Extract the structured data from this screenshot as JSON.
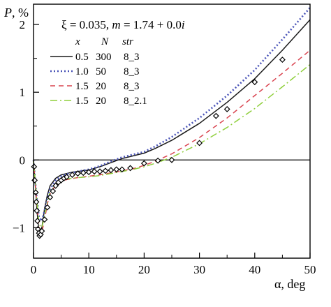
{
  "chart_data": {
    "type": "line",
    "title": "ξ = 0.035, m = 1.74 + 0.0i",
    "title_parts": {
      "xi": "ξ = 0.035, ",
      "m_var": "m",
      "m_eq": " = 1.74 + 0.0",
      "m_imag": "i"
    },
    "xlabel": "α, deg",
    "ylabel": "P, %",
    "ylabel_parts": {
      "var": "P",
      "unit": ", %"
    },
    "xlim": [
      0,
      50
    ],
    "ylim": [
      -1.45,
      2.3
    ],
    "xticks": [
      0,
      10,
      20,
      30,
      40,
      50
    ],
    "xtick_labels": [
      "0",
      "10",
      "20",
      "30",
      "40",
      "50"
    ],
    "yticks": [
      -1,
      0,
      1,
      2
    ],
    "ytick_labels": [
      "−1",
      "0",
      "1",
      "2"
    ],
    "reference_line_y": 0,
    "legend": {
      "placement": "top-left",
      "headers": [
        "x",
        "N",
        "str"
      ],
      "entries": [
        {
          "x": "0.5",
          "N": "300",
          "str": "8_3"
        },
        {
          "x": "1.0",
          "N": "50",
          "str": "8_3"
        },
        {
          "x": "1.5",
          "N": "20",
          "str": "8_3"
        },
        {
          "x": "1.5",
          "N": "20",
          "str": "8_2.1"
        }
      ]
    },
    "series": [
      {
        "style": "solid",
        "color": "#1a1a1a",
        "x": [
          0,
          0.3,
          0.6,
          0.9,
          1.2,
          1.6,
          2,
          2.5,
          3,
          4,
          5,
          6,
          7,
          8,
          10,
          12,
          14,
          16,
          18,
          20,
          22,
          25,
          30,
          35,
          40,
          45,
          50
        ],
        "y": [
          0,
          -0.35,
          -0.72,
          -1.0,
          -1.13,
          -0.95,
          -0.72,
          -0.52,
          -0.38,
          -0.27,
          -0.22,
          -0.2,
          -0.18,
          -0.17,
          -0.15,
          -0.1,
          -0.04,
          0.02,
          0.06,
          0.1,
          0.17,
          0.29,
          0.54,
          0.85,
          1.2,
          1.62,
          2.07
        ]
      },
      {
        "style": "dotted",
        "color": "#4b55b8",
        "x": [
          0,
          0.5,
          1,
          1.5,
          2,
          2.5,
          3,
          4,
          5,
          6,
          8,
          10,
          12,
          14,
          16,
          18,
          20,
          22,
          25,
          30,
          35,
          40,
          45,
          50
        ],
        "y": [
          0,
          -0.5,
          -0.85,
          -0.9,
          -0.75,
          -0.57,
          -0.43,
          -0.3,
          -0.24,
          -0.21,
          -0.17,
          -0.14,
          -0.09,
          -0.02,
          0.04,
          0.08,
          0.12,
          0.2,
          0.34,
          0.62,
          0.95,
          1.33,
          1.78,
          2.25
        ]
      },
      {
        "style": "dashed",
        "color": "#d9434f",
        "x": [
          0,
          0.5,
          1,
          1.5,
          2,
          2.5,
          3,
          4,
          5,
          6,
          8,
          10,
          12,
          14,
          16,
          18,
          20,
          22,
          25,
          30,
          35,
          40,
          45,
          50
        ],
        "y": [
          0,
          -0.55,
          -1.0,
          -1.07,
          -0.88,
          -0.65,
          -0.5,
          -0.37,
          -0.32,
          -0.29,
          -0.26,
          -0.24,
          -0.22,
          -0.19,
          -0.16,
          -0.13,
          -0.08,
          -0.02,
          0.09,
          0.33,
          0.62,
          0.95,
          1.28,
          1.62
        ]
      },
      {
        "style": "dashdot",
        "color": "#8fcf3c",
        "x": [
          0,
          0.5,
          1,
          1.5,
          2,
          2.5,
          3,
          4,
          5,
          6,
          8,
          10,
          12,
          14,
          16,
          18,
          20,
          22,
          25,
          30,
          35,
          40,
          45,
          50
        ],
        "y": [
          0,
          -0.5,
          -0.95,
          -1.0,
          -0.83,
          -0.62,
          -0.47,
          -0.35,
          -0.3,
          -0.28,
          -0.26,
          -0.25,
          -0.23,
          -0.2,
          -0.17,
          -0.14,
          -0.1,
          -0.05,
          0.04,
          0.24,
          0.48,
          0.76,
          1.08,
          1.41
        ]
      }
    ],
    "markers": {
      "shape": "diamond",
      "x": [
        0.1,
        0.2,
        0.4,
        0.5,
        0.6,
        0.7,
        0.8,
        1.0,
        1.1,
        1.3,
        1.5,
        2.0,
        2.5,
        3.0,
        3.5,
        4.0,
        4.5,
        5.0,
        5.5,
        6,
        7,
        8,
        9,
        10,
        11,
        12,
        13,
        14,
        15,
        16,
        17.5,
        20,
        22.5,
        25,
        30,
        33,
        35,
        40,
        45
      ],
      "y": [
        -0.1,
        -0.3,
        -0.48,
        -0.62,
        -0.75,
        -0.9,
        -1.02,
        -1.08,
        -1.12,
        -1.1,
        -1.05,
        -0.88,
        -0.7,
        -0.55,
        -0.46,
        -0.38,
        -0.33,
        -0.3,
        -0.27,
        -0.25,
        -0.22,
        -0.2,
        -0.19,
        -0.18,
        -0.17,
        -0.17,
        -0.16,
        -0.15,
        -0.14,
        -0.14,
        -0.12,
        -0.05,
        -0.01,
        0.0,
        0.25,
        0.65,
        0.75,
        1.15,
        1.48
      ]
    }
  }
}
